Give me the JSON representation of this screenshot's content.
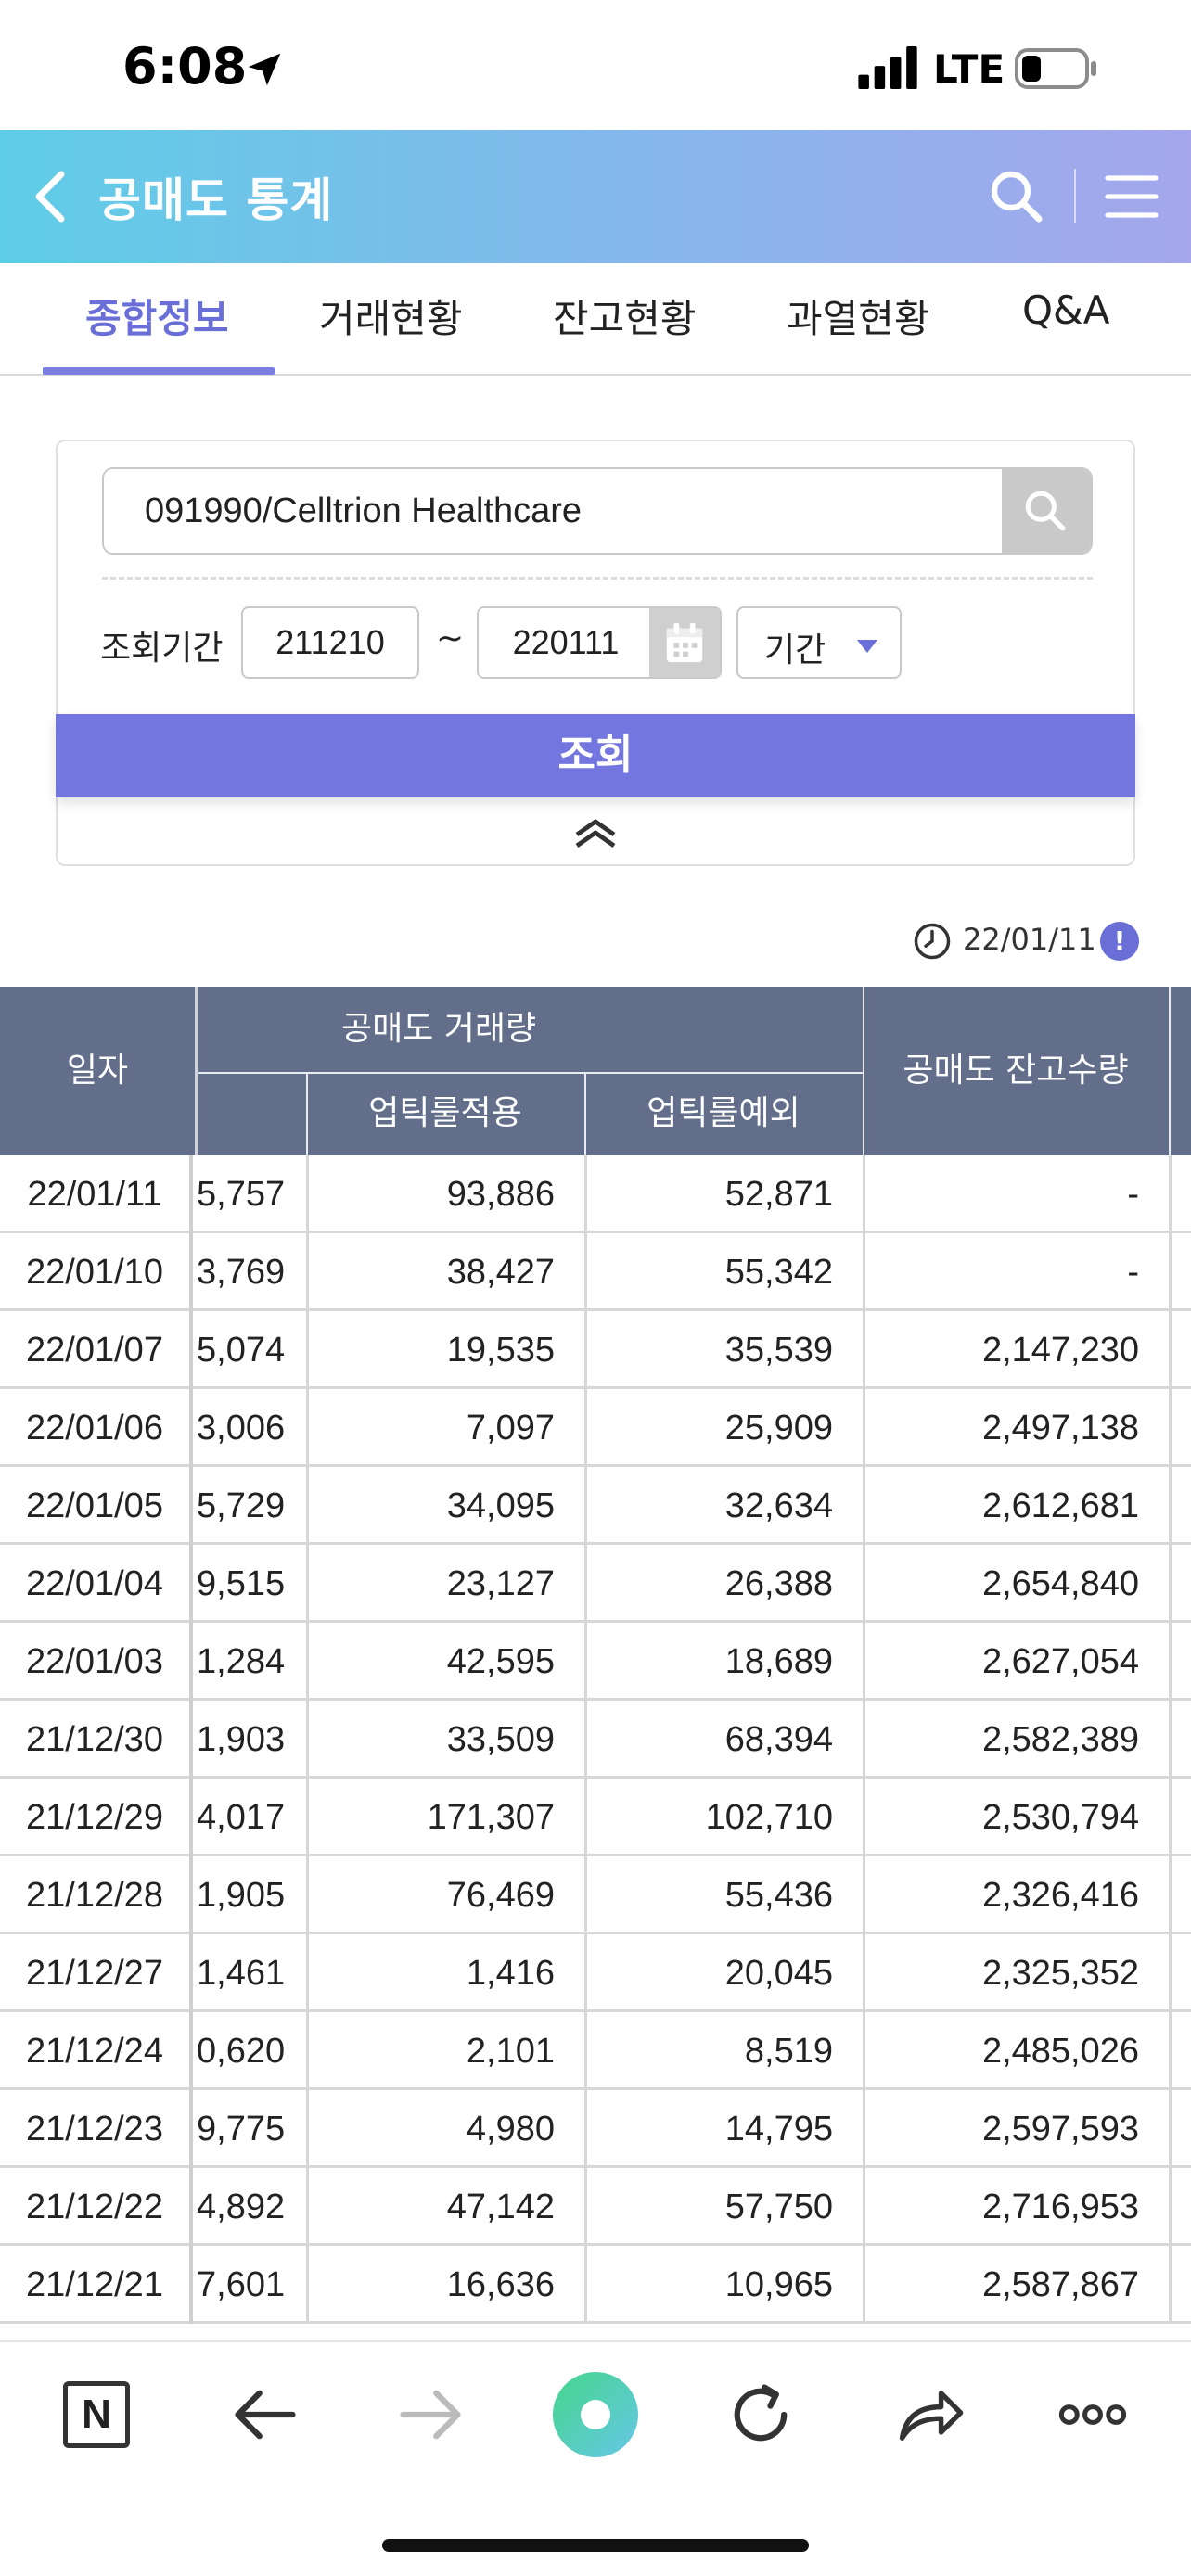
{
  "status_bar": {
    "time": "6:08",
    "network": "LTE"
  },
  "header": {
    "title": "공매도 통계"
  },
  "tabs": [
    {
      "label": "종합정보",
      "active": true
    },
    {
      "label": "거래현황",
      "active": false
    },
    {
      "label": "잔고현황",
      "active": false
    },
    {
      "label": "과열현황",
      "active": false
    },
    {
      "label": "Q&A",
      "active": false
    }
  ],
  "search": {
    "stock_value": "091990/Celltrion Healthcare",
    "period_label": "조회기간",
    "date_from": "211210",
    "separator": "~",
    "date_to": "220111",
    "period_select": "기간",
    "query_button": "조회"
  },
  "update": {
    "time": "22/01/11",
    "info_glyph": "!"
  },
  "table": {
    "headers": {
      "date": "일자",
      "volume_group": "공매도 거래량",
      "uptick_applied": "업틱룰적용",
      "uptick_exempt": "업틱룰예외",
      "balance": "공매도 잔고수량"
    },
    "rows": [
      {
        "date": "22/01/11",
        "total": "5,757",
        "uptick": "93,886",
        "exempt": "52,871",
        "balance": "-"
      },
      {
        "date": "22/01/10",
        "total": "3,769",
        "uptick": "38,427",
        "exempt": "55,342",
        "balance": "-"
      },
      {
        "date": "22/01/07",
        "total": "5,074",
        "uptick": "19,535",
        "exempt": "35,539",
        "balance": "2,147,230"
      },
      {
        "date": "22/01/06",
        "total": "3,006",
        "uptick": "7,097",
        "exempt": "25,909",
        "balance": "2,497,138"
      },
      {
        "date": "22/01/05",
        "total": "5,729",
        "uptick": "34,095",
        "exempt": "32,634",
        "balance": "2,612,681"
      },
      {
        "date": "22/01/04",
        "total": "9,515",
        "uptick": "23,127",
        "exempt": "26,388",
        "balance": "2,654,840"
      },
      {
        "date": "22/01/03",
        "total": "1,284",
        "uptick": "42,595",
        "exempt": "18,689",
        "balance": "2,627,054"
      },
      {
        "date": "21/12/30",
        "total": "1,903",
        "uptick": "33,509",
        "exempt": "68,394",
        "balance": "2,582,389"
      },
      {
        "date": "21/12/29",
        "total": "4,017",
        "uptick": "171,307",
        "exempt": "102,710",
        "balance": "2,530,794"
      },
      {
        "date": "21/12/28",
        "total": "1,905",
        "uptick": "76,469",
        "exempt": "55,436",
        "balance": "2,326,416"
      },
      {
        "date": "21/12/27",
        "total": "1,461",
        "uptick": "1,416",
        "exempt": "20,045",
        "balance": "2,325,352"
      },
      {
        "date": "21/12/24",
        "total": "0,620",
        "uptick": "2,101",
        "exempt": "8,519",
        "balance": "2,485,026"
      },
      {
        "date": "21/12/23",
        "total": "9,775",
        "uptick": "4,980",
        "exempt": "14,795",
        "balance": "2,597,593"
      },
      {
        "date": "21/12/22",
        "total": "4,892",
        "uptick": "47,142",
        "exempt": "57,750",
        "balance": "2,716,953"
      },
      {
        "date": "21/12/21",
        "total": "7,601",
        "uptick": "16,636",
        "exempt": "10,965",
        "balance": "2,587,867"
      }
    ]
  },
  "toolbar": {
    "naver_glyph": "N"
  },
  "colors": {
    "accent": "#7476df",
    "table_header": "#626e8a",
    "active_tab": "#6a6fd8"
  }
}
